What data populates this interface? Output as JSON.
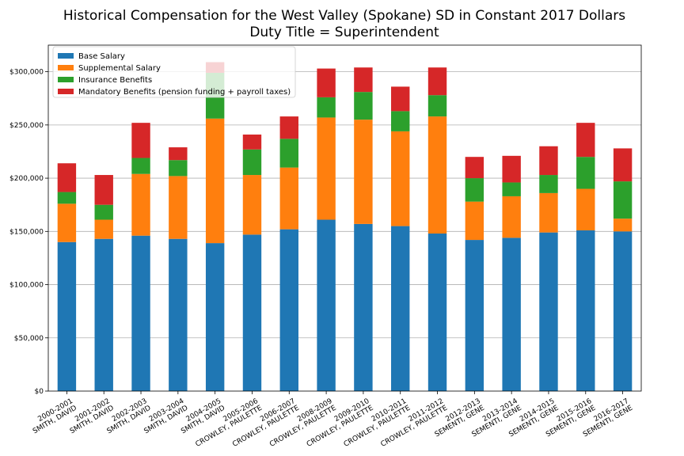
{
  "chart_data": {
    "type": "bar",
    "stacked": true,
    "title": "Historical Compensation for the West Valley (Spokane) SD in Constant 2017 Dollars",
    "subtitle": "Duty Title = Superintendent",
    "xlabel": "",
    "ylabel": "",
    "ylim": [
      0,
      325000
    ],
    "y_ticks": [
      0,
      50000,
      100000,
      150000,
      200000,
      250000,
      300000
    ],
    "y_tick_labels": [
      "$0",
      "$50,000",
      "$100,000",
      "$150,000",
      "$200,000",
      "$250,000",
      "$300,000"
    ],
    "grid": "horizontal",
    "legend_position": "top-left",
    "categories": [
      [
        "2000-2001",
        "SMITH, DAVID"
      ],
      [
        "2001-2002",
        "SMITH, DAVID"
      ],
      [
        "2002-2003",
        "SMITH, DAVID"
      ],
      [
        "2003-2004",
        "SMITH, DAVID"
      ],
      [
        "2004-2005",
        "SMITH, DAVID"
      ],
      [
        "2005-2006",
        "CROWLEY, PAULETTE"
      ],
      [
        "2006-2007",
        "CROWLEY, PAULETTE"
      ],
      [
        "2008-2009",
        "CROWLEY, PAULETTE"
      ],
      [
        "2009-2010",
        "CROWLEY, PAULETTE"
      ],
      [
        "2010-2011",
        "CROWLEY, PAULETTE"
      ],
      [
        "2011-2012",
        "CROWLEY, PAULETTE"
      ],
      [
        "2012-2013",
        "SEMENTI, GENE"
      ],
      [
        "2013-2014",
        "SEMENTI, GENE"
      ],
      [
        "2014-2015",
        "SEMENTI, GENE"
      ],
      [
        "2015-2016",
        "SEMENTI, GENE"
      ],
      [
        "2016-2017",
        "SEMENTI, GENE"
      ]
    ],
    "series": [
      {
        "name": "Base Salary",
        "color": "#1f77b4",
        "values": [
          140000,
          143000,
          146000,
          143000,
          139000,
          147000,
          152000,
          161000,
          157000,
          155000,
          148000,
          142000,
          144000,
          149000,
          151000,
          150000
        ]
      },
      {
        "name": "Supplemental Salary",
        "color": "#ff7f0e",
        "values": [
          36000,
          18000,
          58000,
          59000,
          117000,
          56000,
          58000,
          96000,
          98000,
          89000,
          110000,
          36000,
          39000,
          37000,
          39000,
          12000
        ]
      },
      {
        "name": "Insurance Benefits",
        "color": "#2ca02c",
        "values": [
          11000,
          14000,
          15000,
          15000,
          43000,
          24000,
          27000,
          19000,
          26000,
          19000,
          20000,
          22000,
          13000,
          17000,
          30000,
          35000
        ]
      },
      {
        "name": "Mandatory Benefits (pension funding + payroll taxes)",
        "color": "#d62728",
        "values": [
          27000,
          28000,
          33000,
          12000,
          10000,
          14000,
          21000,
          27000,
          23000,
          23000,
          26000,
          20000,
          25000,
          27000,
          32000,
          31000
        ]
      }
    ]
  }
}
